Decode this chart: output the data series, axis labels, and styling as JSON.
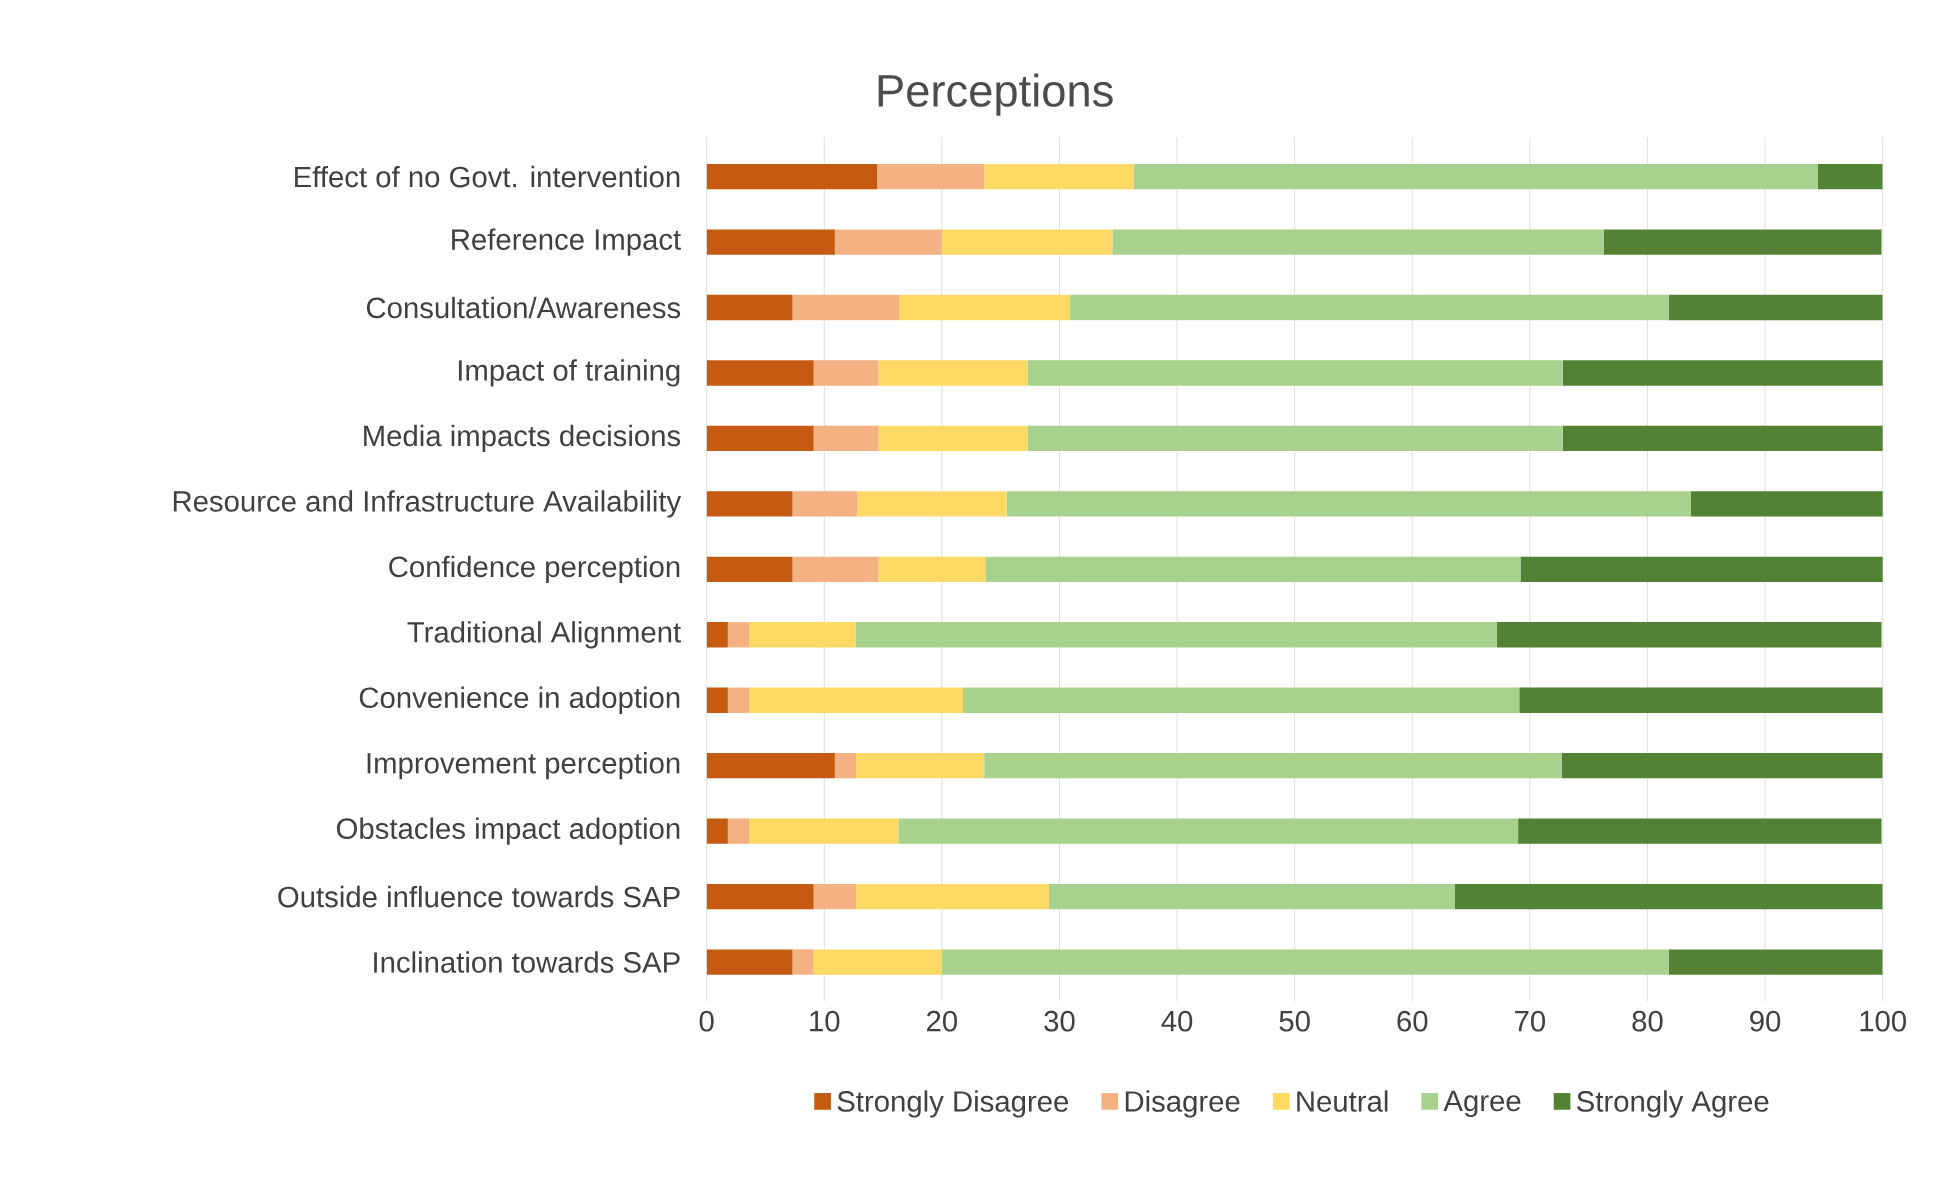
{
  "chart_data": {
    "type": "bar",
    "orientation": "horizontal",
    "stacked": true,
    "title": "Perceptions",
    "categories": [
      "Effect of no Govt. intervention",
      "Reference Impact",
      "Consultation/Awareness",
      "Impact of training",
      "Media impacts decisions",
      "Resource and Infrastructure Availability",
      "Confidence perception",
      "Traditional Alignment",
      "Convenience in adoption",
      "Improvement perception",
      "Obstacles impact adoption",
      "Outside influence towards SAP",
      "Inclination towards SAP"
    ],
    "series": [
      {
        "name": "Strongly Disagree",
        "color": "#c55a11",
        "values": [
          14.5,
          10.9,
          7.3,
          9.1,
          9.1,
          7.3,
          7.3,
          1.8,
          1.8,
          10.9,
          1.8,
          9.1,
          7.3
        ]
      },
      {
        "name": "Disagree",
        "color": "#f4b183",
        "values": [
          9.1,
          9.1,
          9.1,
          5.5,
          5.5,
          5.5,
          7.3,
          1.8,
          1.8,
          1.8,
          1.8,
          3.6,
          1.8
        ]
      },
      {
        "name": "Neutral",
        "color": "#ffd966",
        "values": [
          12.7,
          14.5,
          14.5,
          12.7,
          12.7,
          12.7,
          9.1,
          9.1,
          18.2,
          10.9,
          12.7,
          16.4,
          10.9
        ]
      },
      {
        "name": "Agree",
        "color": "#a9d18e",
        "values": [
          58.2,
          41.8,
          50.9,
          45.5,
          45.5,
          58.2,
          45.5,
          54.5,
          47.3,
          49.1,
          52.7,
          34.5,
          61.8
        ]
      },
      {
        "name": "Strongly Agree",
        "color": "#548235",
        "values": [
          5.5,
          23.6,
          18.2,
          27.3,
          27.3,
          16.4,
          30.9,
          32.7,
          30.9,
          27.3,
          30.9,
          36.4,
          18.2
        ]
      }
    ],
    "xlim": [
      0,
      100
    ],
    "xticks": [
      0,
      10,
      20,
      30,
      40,
      50,
      60,
      70,
      80,
      90,
      100
    ],
    "grid": "x",
    "legend": "bottom"
  }
}
